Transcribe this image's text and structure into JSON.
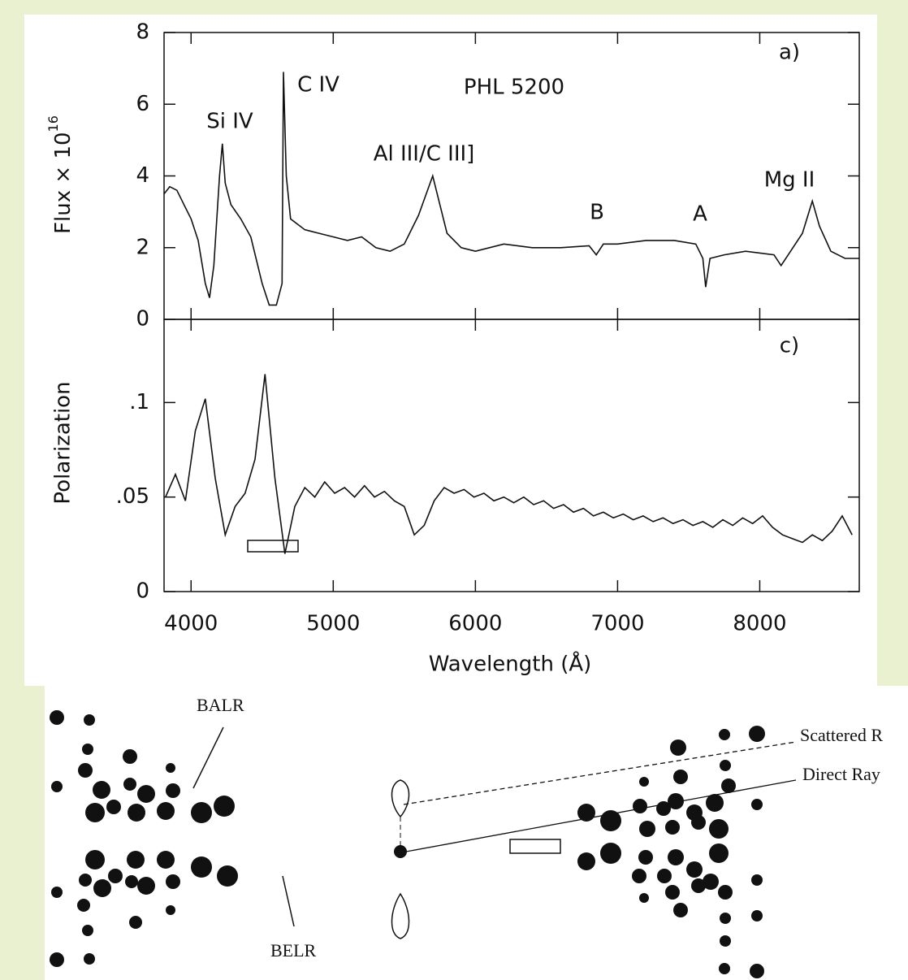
{
  "chart_data": [
    {
      "type": "line",
      "y_label": "Flux × 10",
      "y_label_exponent": "16",
      "annotations": [
        "Si IV",
        "C IV",
        "PHL 5200",
        "Al III/C III]",
        "B",
        "A",
        "Mg II",
        "a)"
      ],
      "xlim": [
        3810,
        8700
      ],
      "ylim": [
        0,
        8
      ],
      "yticks": [
        0,
        2,
        4,
        6,
        8
      ],
      "series": [
        {
          "color": "#111111",
          "x": [
            3810,
            3850,
            3900,
            3950,
            4000,
            4050,
            4100,
            4130,
            4160,
            4200,
            4220,
            4240,
            4280,
            4350,
            4420,
            4500,
            4550,
            4600,
            4640,
            4650,
            4670,
            4700,
            4800,
            4900,
            5000,
            5100,
            5200,
            5300,
            5400,
            5500,
            5600,
            5700,
            5750,
            5800,
            5900,
            6000,
            6200,
            6400,
            6600,
            6800,
            6850,
            6900,
            7000,
            7200,
            7400,
            7550,
            7600,
            7620,
            7650,
            7750,
            7900,
            8100,
            8150,
            8200,
            8300,
            8370,
            8420,
            8500,
            8600,
            8700
          ],
          "values": [
            3.5,
            3.7,
            3.6,
            3.2,
            2.8,
            2.2,
            1.0,
            0.6,
            1.5,
            4.0,
            4.9,
            3.8,
            3.2,
            2.8,
            2.3,
            1.0,
            0.4,
            0.4,
            1.0,
            6.9,
            4.0,
            2.8,
            2.5,
            2.4,
            2.3,
            2.2,
            2.3,
            2.0,
            1.9,
            2.1,
            2.9,
            4.0,
            3.2,
            2.4,
            2.0,
            1.9,
            2.1,
            2.0,
            2.0,
            2.05,
            1.8,
            2.1,
            2.1,
            2.2,
            2.2,
            2.1,
            1.7,
            0.9,
            1.7,
            1.8,
            1.9,
            1.8,
            1.5,
            1.8,
            2.4,
            3.3,
            2.6,
            1.9,
            1.7,
            1.7
          ]
        }
      ]
    },
    {
      "type": "line",
      "y_label": "Polarization",
      "x_label": "Wavelength (Å)",
      "annotations": [
        "c)"
      ],
      "xlim": [
        3810,
        8700
      ],
      "xticks": [
        4000,
        5000,
        6000,
        7000,
        8000
      ],
      "ylim": [
        0,
        0.144
      ],
      "yticks": [
        0,
        {
          "value": 0.05,
          "label": ".05"
        },
        {
          "value": 0.1,
          "label": ".1"
        }
      ],
      "series": [
        {
          "color": "#111111",
          "x": [
            3820,
            3890,
            3960,
            4030,
            4100,
            4170,
            4240,
            4310,
            4380,
            4450,
            4520,
            4590,
            4660,
            4730,
            4800,
            4870,
            4940,
            5010,
            5080,
            5150,
            5220,
            5290,
            5360,
            5430,
            5500,
            5570,
            5640,
            5710,
            5780,
            5850,
            5920,
            5990,
            6060,
            6130,
            6200,
            6270,
            6340,
            6410,
            6480,
            6550,
            6620,
            6690,
            6760,
            6830,
            6900,
            6970,
            7040,
            7110,
            7180,
            7250,
            7320,
            7390,
            7460,
            7530,
            7600,
            7670,
            7740,
            7810,
            7880,
            7950,
            8020,
            8090,
            8160,
            8230,
            8300,
            8370,
            8440,
            8510,
            8580,
            8650
          ],
          "values": [
            0.05,
            0.062,
            0.048,
            0.085,
            0.102,
            0.06,
            0.03,
            0.045,
            0.052,
            0.07,
            0.115,
            0.06,
            0.02,
            0.045,
            0.055,
            0.05,
            0.058,
            0.052,
            0.055,
            0.05,
            0.056,
            0.05,
            0.053,
            0.048,
            0.045,
            0.03,
            0.035,
            0.048,
            0.055,
            0.052,
            0.054,
            0.05,
            0.052,
            0.048,
            0.05,
            0.047,
            0.05,
            0.046,
            0.048,
            0.044,
            0.046,
            0.042,
            0.044,
            0.04,
            0.042,
            0.039,
            0.041,
            0.038,
            0.04,
            0.037,
            0.039,
            0.036,
            0.038,
            0.035,
            0.037,
            0.034,
            0.038,
            0.035,
            0.039,
            0.036,
            0.04,
            0.034,
            0.03,
            0.028,
            0.026,
            0.03,
            0.027,
            0.032,
            0.04,
            0.03
          ]
        }
      ]
    }
  ],
  "diagram": {
    "labels": [
      "BALR",
      "BELR",
      "Scattered R",
      "Direct Ray"
    ]
  }
}
